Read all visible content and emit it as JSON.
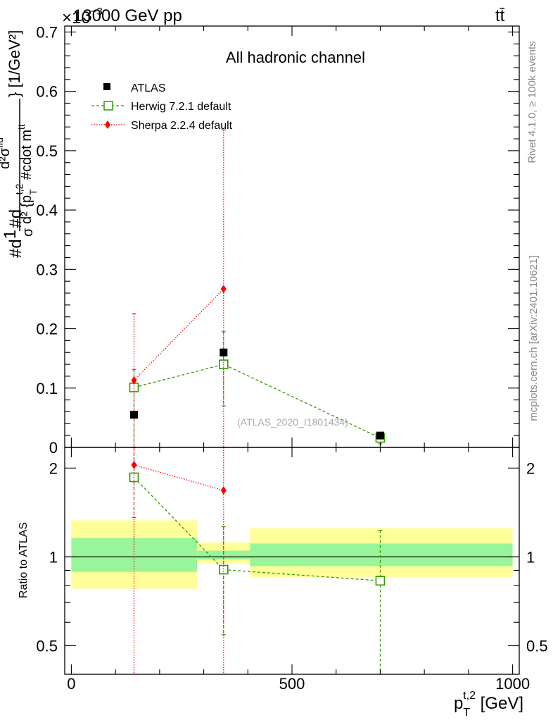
{
  "header": {
    "energy_label": "13000 GeV pp",
    "process_label": "tt̄",
    "exponent_label": "×10",
    "exponent_power": "−3"
  },
  "side_labels": {
    "rivet": "Rivet 4.1.0, ≥ 100k events",
    "mcplots": "mcplots.cern.ch [arXiv:2401.10621]"
  },
  "chart_data": [
    {
      "type": "scatter",
      "panel": "main",
      "title": "All hadronic channel",
      "ylabel": "#d1/σ#d d²σ^{tt}/d² {p_T^{t,2} #cdot m^{tt}} [1/GeV²]",
      "ylabel_parts": {
        "a": "#d",
        "b": "1",
        "c": "σ",
        "d": "#d",
        "e": "d²σ",
        "f": "fid",
        "g": "d² {p",
        "h": "T",
        "i": "t,2",
        "j": " #cdot m",
        "k": "tt",
        "l": "} [1/GeV²]"
      },
      "watermark": "(ATLAS_2020_I1801434)",
      "xlim": [
        -15,
        1015
      ],
      "ylim": [
        0,
        0.71
      ],
      "y_scale_factor": "1e-3",
      "yticks": [
        0,
        0.1,
        0.2,
        0.3,
        0.4,
        0.5,
        0.6,
        0.7
      ],
      "ytick_labels": [
        "0",
        "0.1",
        "0.2",
        "0.3",
        "0.4",
        "0.5",
        "0.6",
        "0.7"
      ],
      "legend": {
        "position": "top-left",
        "entries": [
          "ATLAS",
          "Herwig 7.2.1 default",
          "Sherpa 2.2.4 default"
        ]
      },
      "series": [
        {
          "name": "ATLAS",
          "color": "#000000",
          "marker": "square-filled",
          "x": [
            142,
            345,
            700
          ],
          "y": [
            0.055,
            0.16,
            0.02
          ]
        },
        {
          "name": "Herwig 7.2.1 default",
          "color": "#339900",
          "marker": "square-open",
          "linestyle": "dashed",
          "x": [
            142,
            345,
            700
          ],
          "y": [
            0.101,
            0.14,
            0.016
          ],
          "err_low": [
            0.11,
            0.07,
            0.01
          ],
          "err_high": [
            0.03,
            0.055,
            0.005
          ]
        },
        {
          "name": "Sherpa 2.2.4 default",
          "color": "#ff0000",
          "marker": "diamond-filled",
          "linestyle": "dotted",
          "x": [
            142,
            345
          ],
          "y": [
            0.113,
            0.267
          ],
          "err_low": [
            0.13,
            0.28
          ],
          "err_high": [
            0.112,
            0.268
          ]
        }
      ]
    },
    {
      "type": "scatter",
      "panel": "ratio",
      "ylabel": "Ratio to ATLAS",
      "xlabel": "p_T^{t,2} [GeV]",
      "xlabel_parts": {
        "a": "p",
        "b": "T",
        "c": "t,2",
        "d": " [GeV]"
      },
      "xlim": [
        -15,
        1015
      ],
      "ylim": [
        0.4,
        2.35
      ],
      "y_scale": "log",
      "yticks": [
        0.5,
        1,
        2
      ],
      "ytick_labels": [
        "0.5",
        "1",
        "2"
      ],
      "xticks": [
        0,
        500,
        1000
      ],
      "xtick_labels": [
        "0",
        "500",
        "1000"
      ],
      "bands": [
        {
          "xmin": 0,
          "xmax": 285,
          "stat_low": 0.89,
          "stat_high": 1.16,
          "tot_low": 0.78,
          "tot_high": 1.33
        },
        {
          "xmin": 285,
          "xmax": 405,
          "stat_low": 0.98,
          "stat_high": 1.05,
          "tot_low": 0.95,
          "tot_high": 1.12
        },
        {
          "xmin": 405,
          "xmax": 1000,
          "stat_low": 0.93,
          "stat_high": 1.11,
          "tot_low": 0.855,
          "tot_high": 1.25
        }
      ],
      "band_colors": {
        "stat": "#99f599",
        "total": "#ffff99"
      },
      "series": [
        {
          "name": "Herwig 7.2.1 default",
          "color": "#339900",
          "marker": "square-open",
          "linestyle": "dashed",
          "x": [
            142,
            345,
            700
          ],
          "y": [
            1.86,
            0.905,
            0.83
          ],
          "err_low": [
            0.5,
            0.36,
            0.45
          ],
          "err_high": [
            0.6,
            0.36,
            0.4
          ]
        },
        {
          "name": "Sherpa 2.2.4 default",
          "color": "#ff0000",
          "marker": "diamond-filled",
          "linestyle": "dotted",
          "x": [
            142,
            345
          ],
          "y": [
            2.05,
            1.68
          ],
          "err_low": [
            1.7,
            1.3
          ],
          "err_high": [
            1.0,
            1.0
          ]
        }
      ]
    }
  ]
}
